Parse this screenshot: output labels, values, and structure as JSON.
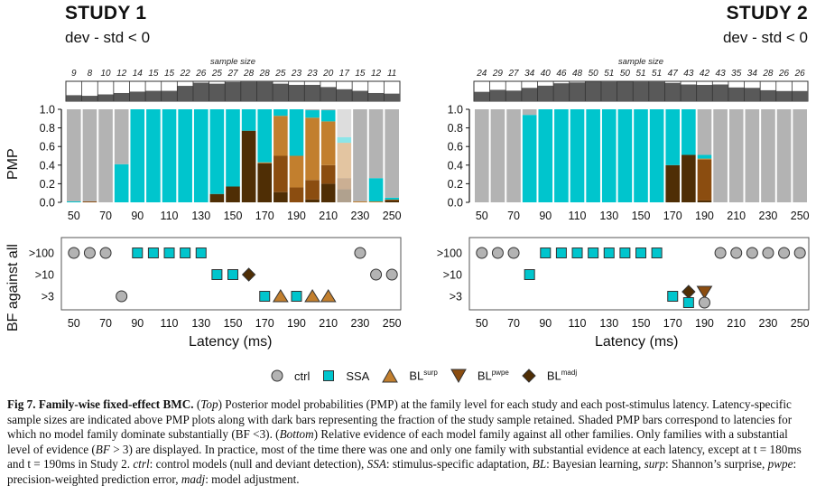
{
  "studies": [
    {
      "title": "STUDY 1",
      "subtitle": "dev - std < 0",
      "sample_size_label": "sample size",
      "sample_sizes": [
        9,
        8,
        10,
        12,
        14,
        15,
        15,
        22,
        26,
        25,
        27,
        28,
        28,
        25,
        23,
        23,
        20,
        17,
        15,
        12,
        11
      ],
      "sample_fraction_retained": [
        0.3,
        0.27,
        0.34,
        0.41,
        0.48,
        0.52,
        0.52,
        0.77,
        0.93,
        0.88,
        0.96,
        1.0,
        1.0,
        0.88,
        0.82,
        0.82,
        0.71,
        0.6,
        0.52,
        0.41,
        0.38
      ]
    },
    {
      "title": "STUDY 2",
      "subtitle": "dev - std < 0",
      "sample_size_label": "sample size",
      "sample_sizes": [
        24,
        29,
        27,
        34,
        40,
        46,
        48,
        50,
        51,
        50,
        51,
        51,
        47,
        43,
        42,
        43,
        35,
        34,
        28,
        26,
        26
      ],
      "sample_fraction_retained": [
        0.47,
        0.57,
        0.53,
        0.67,
        0.78,
        0.9,
        0.94,
        0.98,
        1.0,
        0.98,
        1.0,
        1.0,
        0.92,
        0.84,
        0.82,
        0.84,
        0.69,
        0.67,
        0.55,
        0.51,
        0.51
      ]
    }
  ],
  "axes": {
    "pmp_ylabel": "PMP",
    "bf_ylabel": "BF against all",
    "xlabel": "Latency (ms)",
    "pmp_yticks": [
      "0.0",
      "0.2",
      "0.4",
      "0.6",
      "0.8",
      "1.0"
    ],
    "bf_levels": [
      ">100",
      ">10",
      ">3"
    ],
    "xticks": [
      "50",
      "70",
      "90",
      "110",
      "130",
      "150",
      "170",
      "190",
      "210",
      "230",
      "250"
    ]
  },
  "legend": [
    {
      "key": "ctrl",
      "label": "ctrl",
      "sup": "",
      "shape": "circle"
    },
    {
      "key": "ssa",
      "label": "SSA",
      "sup": "",
      "shape": "square"
    },
    {
      "key": "surp",
      "label": "BL",
      "sup": "surp",
      "shape": "triangle-up"
    },
    {
      "key": "pwpe",
      "label": "BL",
      "sup": "pwpe",
      "shape": "triangle-down"
    },
    {
      "key": "madj",
      "label": "BL",
      "sup": "madj",
      "shape": "diamond"
    }
  ],
  "colors": {
    "ctrl": "#b3b3b3",
    "ssa": "#00c5cd",
    "surp": "#c27f2e",
    "pwpe": "#8b4d10",
    "madj": "#4f2e05",
    "sample_dark": "#595959",
    "sample_light": "#ffffff"
  },
  "chart_data": [
    {
      "type": "bar",
      "title": "STUDY 1 - dev - std < 0 - family PMP (stacked)",
      "xlabel": "",
      "ylabel": "PMP",
      "ylim": [
        0,
        1
      ],
      "x": [
        50,
        60,
        70,
        80,
        90,
        100,
        110,
        120,
        130,
        140,
        150,
        160,
        170,
        180,
        190,
        200,
        210,
        220,
        230,
        240,
        250
      ],
      "stack_order_bottom_to_top": [
        "madj",
        "pwpe",
        "surp",
        "ssa",
        "ctrl"
      ],
      "shaded_latencies": [
        220
      ],
      "series": [
        {
          "name": "BL madj",
          "values": [
            0,
            0,
            0,
            0,
            0,
            0,
            0,
            0,
            0,
            0.09,
            0.17,
            0.77,
            0.42,
            0.11,
            0,
            0.03,
            0.2,
            0.14,
            0,
            0,
            0.02
          ]
        },
        {
          "name": "BL pwpe",
          "values": [
            0,
            0.01,
            0,
            0,
            0,
            0,
            0,
            0,
            0,
            0,
            0,
            0,
            0,
            0.39,
            0.16,
            0.21,
            0.2,
            0.12,
            0,
            0,
            0.01
          ]
        },
        {
          "name": "BL surp",
          "values": [
            0,
            0,
            0,
            0,
            0,
            0,
            0,
            0,
            0,
            0,
            0,
            0,
            0.01,
            0.43,
            0.34,
            0.67,
            0.47,
            0.38,
            0.01,
            0.01,
            0
          ]
        },
        {
          "name": "SSA",
          "values": [
            0.01,
            0,
            0,
            0.41,
            1.0,
            1.0,
            1.0,
            1.0,
            1.0,
            0.91,
            0.83,
            0.23,
            0.57,
            0.07,
            0.5,
            0.08,
            0.12,
            0.06,
            0,
            0.25,
            0.02
          ]
        },
        {
          "name": "ctrl",
          "values": [
            0.99,
            0.99,
            1.0,
            0.59,
            0,
            0,
            0,
            0,
            0,
            0,
            0,
            0,
            0,
            0,
            0,
            0.01,
            0.01,
            0.3,
            0.99,
            0.74,
            0.95
          ]
        }
      ]
    },
    {
      "type": "scatter",
      "title": "STUDY 1 - BF against all",
      "xlabel": "Latency (ms)",
      "ylabel": "BF against all",
      "xlim": [
        50,
        250
      ],
      "points": [
        {
          "x": 50,
          "level": ">100",
          "family": "ctrl"
        },
        {
          "x": 60,
          "level": ">100",
          "family": "ctrl"
        },
        {
          "x": 70,
          "level": ">100",
          "family": "ctrl"
        },
        {
          "x": 80,
          "level": ">3",
          "family": "ctrl"
        },
        {
          "x": 90,
          "level": ">100",
          "family": "ssa"
        },
        {
          "x": 100,
          "level": ">100",
          "family": "ssa"
        },
        {
          "x": 110,
          "level": ">100",
          "family": "ssa"
        },
        {
          "x": 120,
          "level": ">100",
          "family": "ssa"
        },
        {
          "x": 130,
          "level": ">100",
          "family": "ssa"
        },
        {
          "x": 140,
          "level": ">10",
          "family": "ssa"
        },
        {
          "x": 150,
          "level": ">10",
          "family": "ssa"
        },
        {
          "x": 160,
          "level": ">10",
          "family": "madj"
        },
        {
          "x": 170,
          "level": ">3",
          "family": "ssa"
        },
        {
          "x": 180,
          "level": ">3",
          "family": "surp"
        },
        {
          "x": 190,
          "level": ">3",
          "family": "ssa"
        },
        {
          "x": 200,
          "level": ">3",
          "family": "surp"
        },
        {
          "x": 210,
          "level": ">3",
          "family": "surp"
        },
        {
          "x": 230,
          "level": ">100",
          "family": "ctrl"
        },
        {
          "x": 240,
          "level": ">10",
          "family": "ctrl"
        },
        {
          "x": 250,
          "level": ">10",
          "family": "ctrl"
        }
      ]
    },
    {
      "type": "bar",
      "title": "STUDY 2 - dev - std < 0 - family PMP (stacked)",
      "xlabel": "",
      "ylabel": "PMP",
      "ylim": [
        0,
        1
      ],
      "x": [
        50,
        60,
        70,
        80,
        90,
        100,
        110,
        120,
        130,
        140,
        150,
        160,
        170,
        180,
        190,
        200,
        210,
        220,
        230,
        240,
        250
      ],
      "stack_order_bottom_to_top": [
        "madj",
        "pwpe",
        "surp",
        "ssa",
        "ctrl"
      ],
      "shaded_latencies": [],
      "series": [
        {
          "name": "BL madj",
          "values": [
            0,
            0,
            0,
            0,
            0,
            0,
            0,
            0,
            0,
            0,
            0,
            0,
            0.4,
            0.51,
            0.02,
            0,
            0,
            0,
            0,
            0,
            0
          ]
        },
        {
          "name": "BL pwpe",
          "values": [
            0,
            0,
            0,
            0,
            0,
            0,
            0,
            0,
            0,
            0,
            0,
            0,
            0,
            0,
            0.44,
            0,
            0,
            0,
            0,
            0,
            0
          ]
        },
        {
          "name": "BL surp",
          "values": [
            0,
            0,
            0,
            0,
            0,
            0,
            0,
            0,
            0,
            0,
            0,
            0,
            0,
            0,
            0.01,
            0,
            0,
            0,
            0,
            0,
            0
          ]
        },
        {
          "name": "SSA",
          "values": [
            0,
            0,
            0,
            0.94,
            1.0,
            1.0,
            1.0,
            1.0,
            1.0,
            1.0,
            1.0,
            1.0,
            0.6,
            0.49,
            0.04,
            0,
            0,
            0,
            0,
            0,
            0
          ]
        },
        {
          "name": "ctrl",
          "values": [
            1.0,
            1.0,
            1.0,
            0.06,
            0,
            0,
            0,
            0,
            0,
            0,
            0,
            0,
            0,
            0,
            0.49,
            1.0,
            1.0,
            1.0,
            1.0,
            1.0,
            1.0
          ]
        }
      ]
    },
    {
      "type": "scatter",
      "title": "STUDY 2 - BF against all",
      "xlabel": "Latency (ms)",
      "ylabel": "BF against all",
      "xlim": [
        50,
        250
      ],
      "points": [
        {
          "x": 50,
          "level": ">100",
          "family": "ctrl"
        },
        {
          "x": 60,
          "level": ">100",
          "family": "ctrl"
        },
        {
          "x": 70,
          "level": ">100",
          "family": "ctrl"
        },
        {
          "x": 80,
          "level": ">10",
          "family": "ssa"
        },
        {
          "x": 90,
          "level": ">100",
          "family": "ssa"
        },
        {
          "x": 100,
          "level": ">100",
          "family": "ssa"
        },
        {
          "x": 110,
          "level": ">100",
          "family": "ssa"
        },
        {
          "x": 120,
          "level": ">100",
          "family": "ssa"
        },
        {
          "x": 130,
          "level": ">100",
          "family": "ssa"
        },
        {
          "x": 140,
          "level": ">100",
          "family": "ssa"
        },
        {
          "x": 150,
          "level": ">100",
          "family": "ssa"
        },
        {
          "x": 160,
          "level": ">100",
          "family": "ssa"
        },
        {
          "x": 170,
          "level": ">3",
          "family": "ssa"
        },
        {
          "x": 180,
          "level": ">3",
          "family": "madj",
          "stack": "upper"
        },
        {
          "x": 180,
          "level": ">3",
          "family": "ssa",
          "stack": "lower"
        },
        {
          "x": 190,
          "level": ">3",
          "family": "pwpe",
          "stack": "upper"
        },
        {
          "x": 190,
          "level": ">3",
          "family": "ctrl",
          "stack": "lower"
        },
        {
          "x": 200,
          "level": ">100",
          "family": "ctrl"
        },
        {
          "x": 210,
          "level": ">100",
          "family": "ctrl"
        },
        {
          "x": 220,
          "level": ">100",
          "family": "ctrl"
        },
        {
          "x": 230,
          "level": ">100",
          "family": "ctrl"
        },
        {
          "x": 240,
          "level": ">100",
          "family": "ctrl"
        },
        {
          "x": 250,
          "level": ">100",
          "family": "ctrl"
        }
      ]
    }
  ],
  "caption": {
    "fig": "Fig 7.",
    "title": "Family-wise fixed-effect BMC.",
    "p1": " (",
    "top": "Top",
    "p2": ") Posterior model probabilities (PMP) at the family level for each study and each post-stimulus latency. Latency-specific sample sizes are indicated above PMP plots along with dark bars representing the fraction of the study sample retained. Shaded PMP bars correspond to latencies for which no model family dominate substantially (BF <3). (",
    "bottom": "Bottom",
    "p3": ") Relative evidence of each model family against all other families. Only families with a substantial level of evidence (",
    "bf": "BF",
    "p4": " > 3) are displayed. In practice, most of the time there was one and only one family with substantial evidence at each latency, except at t = 180ms and t = 190ms in Study 2. ",
    "ctrl": "ctrl",
    "p5": ": control models (null and deviant detection), ",
    "ssa": "SSA",
    "p6": ": stimulus-specific adaptation, ",
    "bl": "BL",
    "p7": ": Bayesian learning, ",
    "surp": "surp",
    "p8": ": Shannon’s surprise, ",
    "pwpe": "pwpe",
    "p9": ": precision-weighted prediction error, ",
    "madj": "madj",
    "p10": ": model adjustment."
  }
}
